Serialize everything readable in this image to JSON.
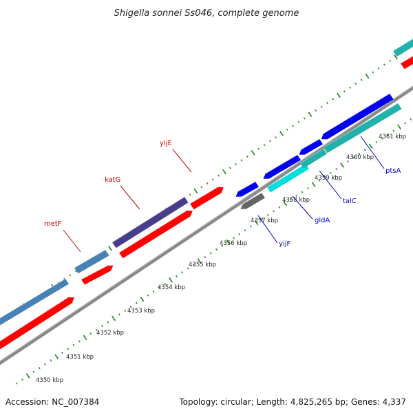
{
  "title": "Shigella sonnei Ss046, complete genome",
  "footer": {
    "accession": "Accession: NC_007384",
    "summary": "Topology: circular; Length: 4,825,265 bp; Genes: 4,337"
  },
  "colors": {
    "backbone": "#8a8a8a",
    "tick_outer": "#2e8b2e",
    "tick_inner": "#2e8b2e",
    "label_forward": "#cc0000",
    "label_reverse": "#0000cc",
    "steelblue": "#4682b4",
    "red": "#ff0000",
    "slateblue": "#483d8b",
    "blue": "#0000ee",
    "gray": "#666666",
    "cyan": "#00dddd",
    "teal": "#20b2aa"
  },
  "axis": {
    "unit": "kbp",
    "ticks": [
      "4350 kbp",
      "4351 kbp",
      "4352 kbp",
      "4353 kbp",
      "4354 kbp",
      "4355 kbp",
      "4356 kbp",
      "4357 kbp",
      "4358 kbp",
      "4359 kbp",
      "4360 kbp",
      "4361 kbp"
    ]
  },
  "gene_labels": [
    {
      "name": "metF",
      "strand": "forward"
    },
    {
      "name": "katG",
      "strand": "forward"
    },
    {
      "name": "yijE",
      "strand": "forward"
    },
    {
      "name": "yijF",
      "strand": "reverse"
    },
    {
      "name": "gldA",
      "strand": "reverse"
    },
    {
      "name": "talC",
      "strand": "reverse"
    },
    {
      "name": "ptsA",
      "strand": "reverse"
    }
  ],
  "features": [
    {
      "strand": "forward",
      "ring": "outer",
      "color": "steelblue",
      "kind": "block"
    },
    {
      "strand": "forward",
      "ring": "inner",
      "color": "red",
      "kind": "arrow"
    },
    {
      "strand": "forward",
      "ring": "outer",
      "color": "steelblue",
      "kind": "block"
    },
    {
      "strand": "forward",
      "ring": "inner",
      "color": "red",
      "kind": "arrow"
    },
    {
      "strand": "forward",
      "ring": "outer",
      "color": "slateblue",
      "kind": "block"
    },
    {
      "strand": "forward",
      "ring": "inner",
      "color": "red",
      "kind": "arrow"
    },
    {
      "strand": "forward",
      "ring": "inner",
      "color": "red",
      "kind": "arrow"
    },
    {
      "strand": "reverse",
      "ring": "outer",
      "color": "blue",
      "kind": "arrow"
    },
    {
      "strand": "reverse",
      "ring": "inner",
      "color": "gray",
      "kind": "arrow"
    },
    {
      "strand": "reverse",
      "ring": "outer",
      "color": "blue",
      "kind": "arrow"
    },
    {
      "strand": "reverse",
      "ring": "inner",
      "color": "cyan",
      "kind": "block"
    },
    {
      "strand": "reverse",
      "ring": "outer",
      "color": "blue",
      "kind": "arrow"
    },
    {
      "strand": "reverse",
      "ring": "inner",
      "color": "teal",
      "kind": "block"
    },
    {
      "strand": "reverse",
      "ring": "outer",
      "color": "blue",
      "kind": "arrow"
    },
    {
      "strand": "reverse",
      "ring": "inner",
      "color": "teal",
      "kind": "block"
    },
    {
      "strand": "reverse",
      "ring": "outer",
      "color": "teal",
      "kind": "block"
    },
    {
      "strand": "forward",
      "ring": "inner",
      "color": "red",
      "kind": "arrow"
    }
  ]
}
